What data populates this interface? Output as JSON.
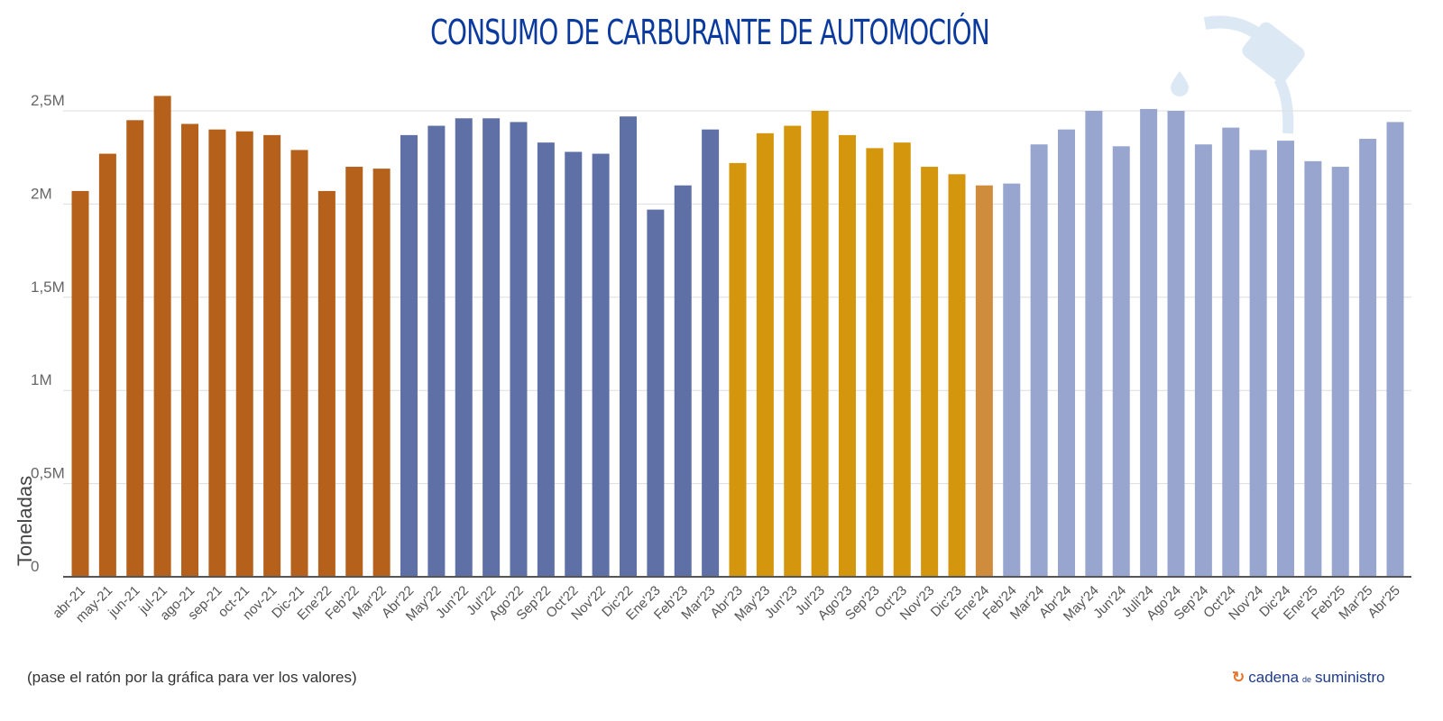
{
  "chart_data": {
    "type": "bar",
    "title": "CONSUMO DE CARBURANTE DE AUTOMOCIÓN",
    "xlabel": "",
    "ylabel": "Toneladas",
    "ylim": [
      0,
      2500000
    ],
    "yticks": [
      0,
      500000,
      1000000,
      1500000,
      2000000,
      2500000
    ],
    "ytick_labels": [
      "0",
      "0,5M",
      "1M",
      "1,5M",
      "2M",
      "2,5M"
    ],
    "grid": true,
    "categories": [
      "abr-21",
      "may-21",
      "jun-21",
      "jul-21",
      "ago-21",
      "sep-21",
      "oct-21",
      "nov-21",
      "Dic-21",
      "Ene'22",
      "Feb'22",
      "Mar'22",
      "Abr'22",
      "May'22",
      "Jun'22",
      "Jul'22",
      "Ago'22",
      "Sep'22",
      "Oct'22",
      "Nov'22",
      "Dic'22",
      "Ene'23",
      "Feb'23",
      "Mar'23",
      "Abr'23",
      "May'23",
      "Jun'23",
      "Jul'23",
      "Ago'23",
      "Sep'23",
      "Oct'23",
      "Nov'23",
      "Dic'23",
      "Ene'24",
      "Feb'24",
      "Mar'24",
      "Abr'24",
      "May'24",
      "Jun'24",
      "Juli'24",
      "Ago'24",
      "Sep'24",
      "Oct'24",
      "Nov'24",
      "Dic'24",
      "Ene'25",
      "Feb'25",
      "Mar'25",
      "Abr'25"
    ],
    "values": [
      2070000,
      2270000,
      2450000,
      2580000,
      2430000,
      2400000,
      2390000,
      2370000,
      2290000,
      2070000,
      2200000,
      2190000,
      2370000,
      2420000,
      2460000,
      2460000,
      2440000,
      2330000,
      2280000,
      2270000,
      2470000,
      1970000,
      2100000,
      2400000,
      2220000,
      2380000,
      2420000,
      2500000,
      2370000,
      2300000,
      2330000,
      2200000,
      2160000,
      2100000,
      2110000,
      2320000,
      2400000,
      2500000,
      2310000,
      2510000,
      2500000,
      2320000,
      2410000,
      2290000,
      2340000,
      2230000,
      2200000,
      2350000,
      2440000
    ],
    "bar_colors": [
      "#b5601b",
      "#b5601b",
      "#b5601b",
      "#b5601b",
      "#b5601b",
      "#b5601b",
      "#b5601b",
      "#b5601b",
      "#b5601b",
      "#b5601b",
      "#b5601b",
      "#b5601b",
      "#5f70a6",
      "#5f70a6",
      "#5f70a6",
      "#5f70a6",
      "#5f70a6",
      "#5f70a6",
      "#5f70a6",
      "#5f70a6",
      "#5f70a6",
      "#5f70a6",
      "#5f70a6",
      "#5f70a6",
      "#d4960c",
      "#d4960c",
      "#d4960c",
      "#d4960c",
      "#d4960c",
      "#d4960c",
      "#d4960c",
      "#d4960c",
      "#d4960c",
      "#cf8c3c",
      "#98a6cf",
      "#98a6cf",
      "#98a6cf",
      "#98a6cf",
      "#98a6cf",
      "#98a6cf",
      "#98a6cf",
      "#98a6cf",
      "#98a6cf",
      "#98a6cf",
      "#98a6cf",
      "#98a6cf",
      "#98a6cf",
      "#98a6cf",
      "#98a6cf"
    ]
  },
  "colors": {
    "title": "#0b3a9e",
    "watermark_icon": "#dce9f5"
  },
  "icons": {
    "watermark": "fuel-pump-nozzle-icon",
    "brand": "cadena-logo-icon"
  },
  "footnote": "(pase el ratón por la gráfica para ver los valores)",
  "brand": {
    "name_part1": "cadena",
    "name_small": "de",
    "name_part2": "suministro"
  }
}
